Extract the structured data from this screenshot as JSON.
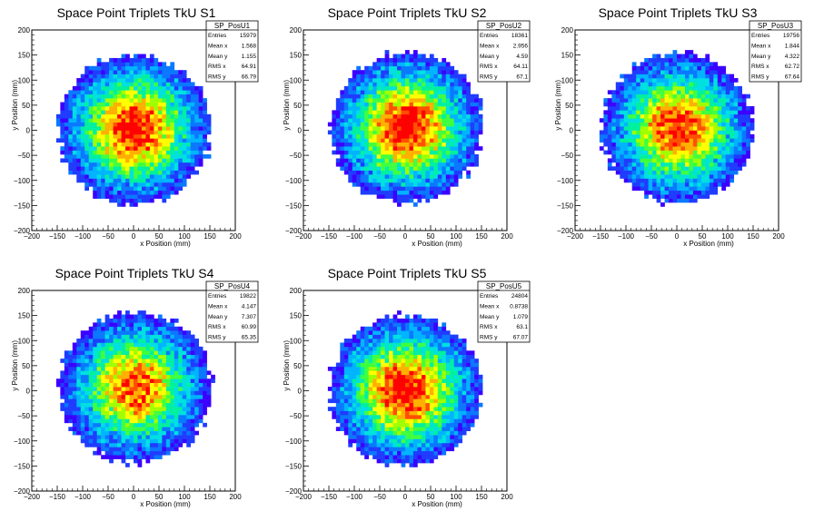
{
  "chart_data": [
    {
      "type": "heatmap",
      "title": "Space Point Triplets TkU S1",
      "xlabel": "x Position (mm)",
      "ylabel": "y Position (mm)",
      "xlim": [
        -200,
        200
      ],
      "ylim": [
        -200,
        200
      ],
      "xticks": [
        "−200",
        "−150",
        "−100",
        "−50",
        "0",
        "50",
        "100",
        "150",
        "200"
      ],
      "yticks": [
        "−200",
        "−150",
        "−100",
        "−50",
        "0",
        "50",
        "100",
        "150",
        "200"
      ],
      "stats": {
        "name": "SP_PosU1",
        "rows": [
          {
            "label": "Entries",
            "value": "15979"
          },
          {
            "label": "Mean x",
            "value": "1.568"
          },
          {
            "label": "Mean y",
            "value": "1.155"
          },
          {
            "label": "RMS x",
            "value": "64.91"
          },
          {
            "label": "RMS y",
            "value": "66.79"
          }
        ]
      },
      "distribution": {
        "center_x": 2,
        "center_y": 2,
        "radius": 150,
        "peak_region_radius": 60,
        "max_level": 1.0
      }
    },
    {
      "type": "heatmap",
      "title": "Space Point Triplets TkU S2",
      "xlabel": "x Position (mm)",
      "ylabel": "y Position (mm)",
      "xlim": [
        -200,
        200
      ],
      "ylim": [
        -200,
        200
      ],
      "xticks": [
        "−200",
        "−150",
        "−100",
        "−50",
        "0",
        "50",
        "100",
        "150",
        "200"
      ],
      "yticks": [
        "−200",
        "−150",
        "−100",
        "−50",
        "0",
        "50",
        "100",
        "150",
        "200"
      ],
      "stats": {
        "name": "SP_PosU2",
        "rows": [
          {
            "label": "Entries",
            "value": "18361"
          },
          {
            "label": "Mean x",
            "value": "2.956"
          },
          {
            "label": "Mean y",
            "value": "4.59"
          },
          {
            "label": "RMS x",
            "value": "64.11"
          },
          {
            "label": "RMS y",
            "value": "67.1"
          }
        ]
      },
      "distribution": {
        "center_x": 3,
        "center_y": 5,
        "radius": 150,
        "peak_region_radius": 60,
        "max_level": 1.0
      }
    },
    {
      "type": "heatmap",
      "title": "Space Point Triplets TkU S3",
      "xlabel": "x Position (mm)",
      "ylabel": "y Position (mm)",
      "xlim": [
        -200,
        200
      ],
      "ylim": [
        -200,
        200
      ],
      "xticks": [
        "−200",
        "−150",
        "−100",
        "−50",
        "0",
        "50",
        "100",
        "150",
        "200"
      ],
      "yticks": [
        "−200",
        "−150",
        "−100",
        "−50",
        "0",
        "50",
        "100",
        "150",
        "200"
      ],
      "stats": {
        "name": "SP_PosU3",
        "rows": [
          {
            "label": "Entries",
            "value": "19756"
          },
          {
            "label": "Mean x",
            "value": "1.844"
          },
          {
            "label": "Mean y",
            "value": "4.322"
          },
          {
            "label": "RMS x",
            "value": "62.72"
          },
          {
            "label": "RMS y",
            "value": "67.64"
          }
        ]
      },
      "distribution": {
        "center_x": 2,
        "center_y": 4,
        "radius": 150,
        "peak_region_radius": 60,
        "max_level": 0.95
      }
    },
    {
      "type": "heatmap",
      "title": "Space Point Triplets TkU S4",
      "xlabel": "x Position (mm)",
      "ylabel": "y Position (mm)",
      "xlim": [
        -200,
        200
      ],
      "ylim": [
        -200,
        200
      ],
      "xticks": [
        "−200",
        "−150",
        "−100",
        "−50",
        "0",
        "50",
        "100",
        "150",
        "200"
      ],
      "yticks": [
        "−200",
        "−150",
        "−100",
        "−50",
        "0",
        "50",
        "100",
        "150",
        "200"
      ],
      "stats": {
        "name": "SP_PosU4",
        "rows": [
          {
            "label": "Entries",
            "value": "19822"
          },
          {
            "label": "Mean x",
            "value": "4.147"
          },
          {
            "label": "Mean y",
            "value": "7.307"
          },
          {
            "label": "RMS x",
            "value": "60.99"
          },
          {
            "label": "RMS y",
            "value": "65.35"
          }
        ]
      },
      "distribution": {
        "center_x": 4,
        "center_y": 7,
        "radius": 150,
        "peak_region_radius": 60,
        "max_level": 0.9
      }
    },
    {
      "type": "heatmap",
      "title": "Space Point Triplets TkU S5",
      "xlabel": "x Position (mm)",
      "ylabel": "y Position (mm)",
      "xlim": [
        -200,
        200
      ],
      "ylim": [
        -200,
        200
      ],
      "xticks": [
        "−200",
        "−150",
        "−100",
        "−50",
        "0",
        "50",
        "100",
        "150",
        "200"
      ],
      "yticks": [
        "−200",
        "−150",
        "−100",
        "−50",
        "0",
        "50",
        "100",
        "150",
        "200"
      ],
      "stats": {
        "name": "SP_PosU5",
        "rows": [
          {
            "label": "Entries",
            "value": "24804"
          },
          {
            "label": "Mean x",
            "value": "0.8738"
          },
          {
            "label": "Mean y",
            "value": "1.079"
          },
          {
            "label": "RMS x",
            "value": "63.1"
          },
          {
            "label": "RMS y",
            "value": "67.07"
          }
        ]
      },
      "distribution": {
        "center_x": 1,
        "center_y": 1,
        "radius": 150,
        "peak_region_radius": 60,
        "max_level": 1.0
      }
    }
  ],
  "colors": {
    "palette": [
      "#3b00ff",
      "#1f3cff",
      "#0a78ff",
      "#00b4ff",
      "#00e0e0",
      "#00f0a0",
      "#40ff40",
      "#a0ff00",
      "#ffff00",
      "#ffb000",
      "#ff5000",
      "#ff0000"
    ],
    "frame": "#000000",
    "background": "#ffffff"
  }
}
